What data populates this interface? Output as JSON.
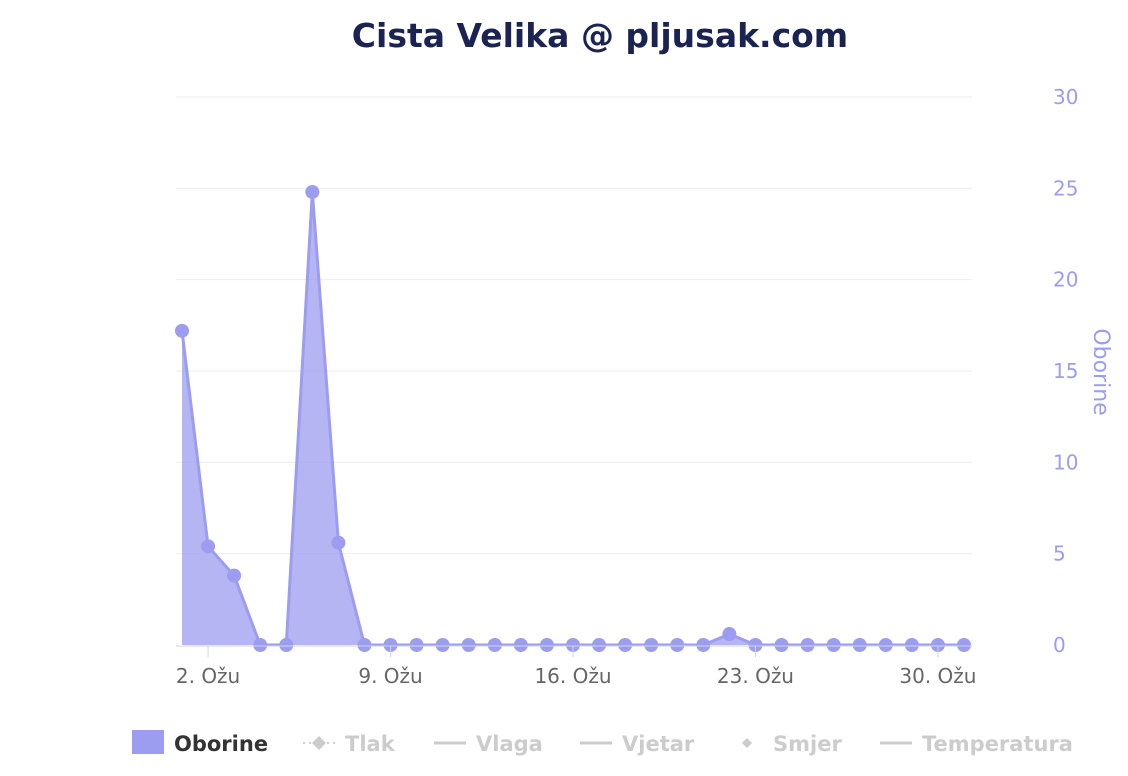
{
  "chart_data": {
    "type": "area",
    "title": "Cista Velika @ pljusak.com",
    "ylabel": "Oborine",
    "ylim": [
      0,
      30
    ],
    "yticks": [
      "0",
      "5",
      "10",
      "15",
      "20",
      "25",
      "30"
    ],
    "xticks": [
      "2. Ožu",
      "9. Ožu",
      "16. Ožu",
      "23. Ožu",
      "30. Ožu"
    ],
    "xtick_days": [
      2,
      9,
      16,
      23,
      30
    ],
    "grid": true,
    "legend_placement": "bottom",
    "series": [
      {
        "name": "Oborine",
        "color": "#9c9cf0",
        "x": [
          1,
          2,
          3,
          4,
          5,
          6,
          7,
          8,
          9,
          10,
          11,
          12,
          13,
          14,
          15,
          16,
          17,
          18,
          19,
          20,
          21,
          22,
          23,
          24,
          25,
          26,
          27,
          28,
          29,
          30,
          31
        ],
        "values": [
          17.2,
          5.4,
          3.8,
          0,
          0,
          24.8,
          5.6,
          0,
          0,
          0,
          0,
          0,
          0,
          0,
          0,
          0,
          0,
          0,
          0,
          0,
          0,
          0.6,
          0,
          0,
          0,
          0,
          0,
          0,
          0,
          0,
          0
        ]
      }
    ],
    "legend": [
      {
        "name": "Oborine",
        "active": true,
        "symbol": "area"
      },
      {
        "name": "Tlak",
        "active": false,
        "symbol": "dotted-diamond"
      },
      {
        "name": "Vlaga",
        "active": false,
        "symbol": "line"
      },
      {
        "name": "Vjetar",
        "active": false,
        "symbol": "line"
      },
      {
        "name": "Smjer",
        "active": false,
        "symbol": "diamond"
      },
      {
        "name": "Temperatura",
        "active": false,
        "symbol": "line"
      }
    ]
  }
}
